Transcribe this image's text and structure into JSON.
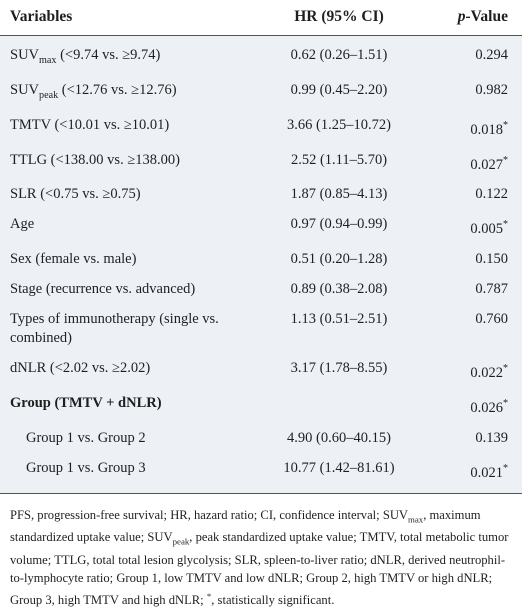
{
  "table": {
    "header": {
      "variables": "Variables",
      "hr": "HR (95% CI)",
      "p_italic": "p",
      "p_rest": "-Value"
    },
    "rows": [
      {
        "label": [
          {
            "text": "SUV"
          },
          {
            "text": "max",
            "style": "sub"
          },
          {
            "text": " (<9.74 vs. ≥9.74)"
          }
        ],
        "hr": "0.62 (0.26–1.51)",
        "p": "0.294"
      },
      {
        "label": [
          {
            "text": "SUV"
          },
          {
            "text": "peak",
            "style": "sub"
          },
          {
            "text": " (<12.76 vs. ≥12.76)"
          }
        ],
        "hr": "0.99 (0.45–2.20)",
        "p": "0.982"
      },
      {
        "label": [
          {
            "text": "TMTV (<10.01 vs. ≥10.01)"
          }
        ],
        "hr": "3.66 (1.25–10.72)",
        "p": "0.018",
        "p_note": "*"
      },
      {
        "label": [
          {
            "text": "TTLG (<138.00 vs. ≥138.00)"
          }
        ],
        "hr": "2.52 (1.11–5.70)",
        "p": "0.027",
        "p_note": "*"
      },
      {
        "label": [
          {
            "text": "SLR (<0.75 vs. ≥0.75)"
          }
        ],
        "hr": "1.87 (0.85–4.13)",
        "p": "0.122"
      },
      {
        "label": [
          {
            "text": "Age"
          }
        ],
        "hr": "0.97 (0.94–0.99)",
        "p": "0.005",
        "p_note": "*"
      },
      {
        "label": [
          {
            "text": "Sex (female vs. male)"
          }
        ],
        "hr": "0.51 (0.20–1.28)",
        "p": "0.150"
      },
      {
        "label": [
          {
            "text": "Stage (recurrence vs. advanced)"
          }
        ],
        "hr": "0.89 (0.38–2.08)",
        "p": "0.787"
      },
      {
        "label": [
          {
            "text": "Types of immunotherapy (single vs. combined)"
          }
        ],
        "hr": "1.13 (0.51–2.51)",
        "p": "0.760"
      },
      {
        "label": [
          {
            "text": "dNLR (<2.02 vs. ≥2.02)"
          }
        ],
        "hr": "3.17 (1.78–8.55)",
        "p": "0.022",
        "p_note": "*"
      },
      {
        "label": [
          {
            "text": "Group (TMTV + dNLR)"
          }
        ],
        "p": "0.026",
        "p_note": "*",
        "bold": true
      },
      {
        "label": [
          {
            "text": "Group 1 vs. Group 2"
          }
        ],
        "hr": "4.90 (0.60–40.15)",
        "p": "0.139",
        "indent": true
      },
      {
        "label": [
          {
            "text": "Group 1 vs. Group 3"
          }
        ],
        "hr": "10.77 (1.42–81.61)",
        "p": "0.021",
        "p_note": "*",
        "indent": true
      }
    ]
  },
  "footnote": [
    {
      "text": "PFS, progression-free survival; HR, hazard ratio; CI, confidence interval; SUV"
    },
    {
      "text": "max",
      "style": "sub"
    },
    {
      "text": ", maximum standardized uptake value; SUV"
    },
    {
      "text": "peak",
      "style": "sub"
    },
    {
      "text": ", peak standardized uptake value; TMTV, total metabolic tumor volume; TTLG, total total lesion glycolysis; SLR, spleen-to-liver ratio; dNLR, derived neutrophil-to-lymphocyte ratio; Group 1, low TMTV and low dNLR; Group 2, high TMTV or high dNLR; Group 3, high TMTV and high dNLR; "
    },
    {
      "text": "*",
      "style": "sup"
    },
    {
      "text": ", statistically significant."
    }
  ]
}
